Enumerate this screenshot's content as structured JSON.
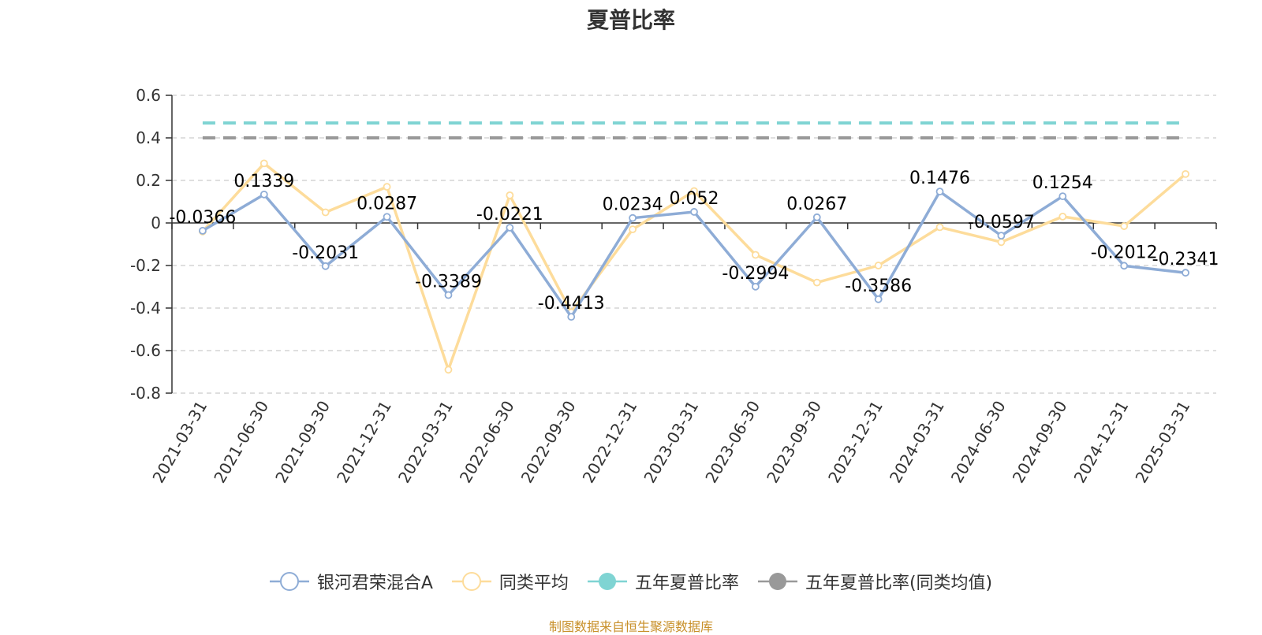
{
  "chart_data": {
    "type": "line",
    "title": "夏普比率",
    "xlabel": "",
    "ylabel": "",
    "ylim": [
      -0.8,
      0.6
    ],
    "yticks": [
      "0.6",
      "0.4",
      "0.2",
      "0",
      "-0.2",
      "-0.4",
      "-0.6",
      "-0.8"
    ],
    "grid": true,
    "legend_position": "bottom",
    "categories": [
      "2021-03-31",
      "2021-06-30",
      "2021-09-30",
      "2021-12-31",
      "2022-03-31",
      "2022-06-30",
      "2022-09-30",
      "2022-12-31",
      "2023-03-31",
      "2023-06-30",
      "2023-09-30",
      "2023-12-31",
      "2024-03-31",
      "2024-06-30",
      "2024-09-30",
      "2024-12-31",
      "2025-03-31"
    ],
    "series": [
      {
        "name": "银河君荣混合A",
        "color": "#8eacd6",
        "marker": "hollow-circle",
        "values": [
          -0.0366,
          0.1339,
          -0.2031,
          0.0287,
          -0.3389,
          -0.0221,
          -0.4413,
          0.0234,
          0.052,
          -0.2994,
          0.0267,
          -0.3586,
          0.1476,
          -0.0597,
          0.1254,
          -0.2012,
          -0.2341
        ],
        "labels": [
          "-0.0366",
          "0.1339",
          "-0.2031",
          "0.0287",
          "-0.3389",
          "-0.0221",
          "-0.4413",
          "0.0234",
          "0.052",
          "-0.2994",
          "0.0267",
          "-0.3586",
          "0.1476",
          "-0.0597",
          "0.1254",
          "-0.2012",
          "-0.2341"
        ]
      },
      {
        "name": "同类平均",
        "color": "#fddc9b",
        "marker": "hollow-circle",
        "values": [
          -0.04,
          0.28,
          0.05,
          0.17,
          -0.69,
          0.13,
          -0.42,
          -0.03,
          0.15,
          -0.15,
          -0.28,
          -0.2,
          -0.02,
          -0.09,
          0.03,
          -0.015,
          0.23
        ]
      },
      {
        "name": "五年夏普比率",
        "color": "#7fd4d3",
        "style": "dashed",
        "marker": "filled-circle",
        "values": [
          0.47,
          0.47,
          0.47,
          0.47,
          0.47,
          0.47,
          0.47,
          0.47,
          0.47,
          0.47,
          0.47,
          0.47,
          0.47,
          0.47,
          0.47,
          0.47,
          0.47
        ]
      },
      {
        "name": "五年夏普比率(同类均值)",
        "color": "#999999",
        "style": "dashed",
        "marker": "filled-circle",
        "values": [
          0.4,
          0.4,
          0.4,
          0.4,
          0.4,
          0.4,
          0.4,
          0.4,
          0.4,
          0.4,
          0.4,
          0.4,
          0.4,
          0.4,
          0.4,
          0.4,
          0.4
        ]
      }
    ]
  },
  "source_note": "制图数据来自恒生聚源数据库"
}
